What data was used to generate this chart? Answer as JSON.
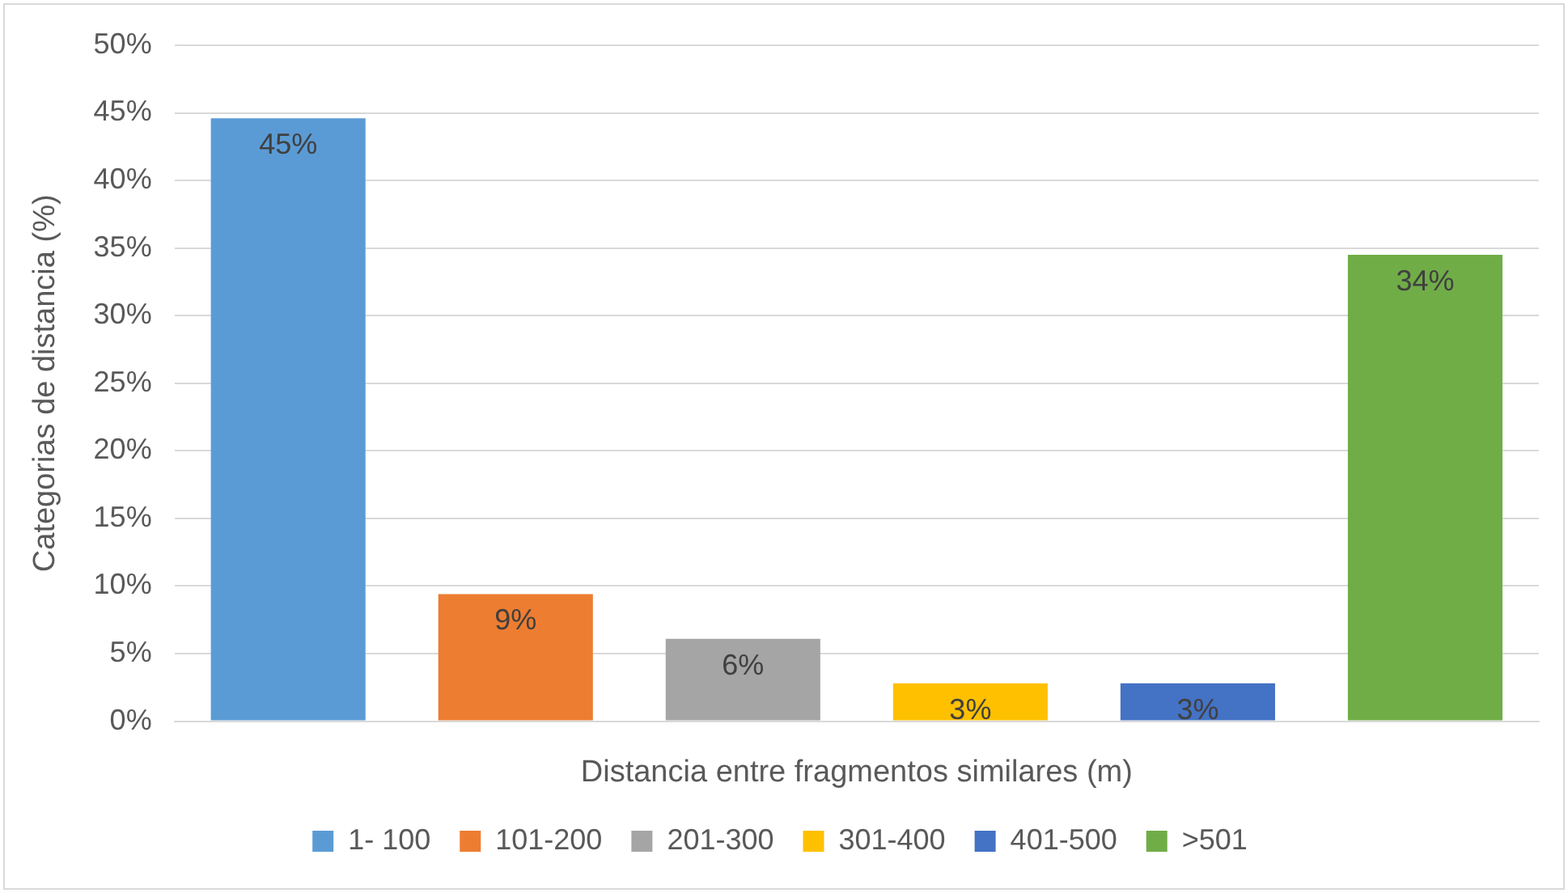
{
  "chart_data": {
    "type": "bar",
    "xlabel": "Distancia entre fragmentos similares (m)",
    "ylabel": "Categorias de distancia (%)",
    "categories": [
      null
    ],
    "series": [
      {
        "name": "1- 100",
        "color": "#5b9bd5",
        "values": [
          44.6
        ],
        "value_labels": [
          "45%"
        ]
      },
      {
        "name": "101-200",
        "color": "#ed7d31",
        "values": [
          9.4
        ],
        "value_labels": [
          "9%"
        ]
      },
      {
        "name": "201-300",
        "color": "#a5a5a5",
        "values": [
          6.1
        ],
        "value_labels": [
          "6%"
        ]
      },
      {
        "name": "301-400",
        "color": "#ffc000",
        "values": [
          2.8
        ],
        "value_labels": [
          "3%"
        ]
      },
      {
        "name": "401-500",
        "color": "#4472c4",
        "values": [
          2.8
        ],
        "value_labels": [
          "3%"
        ]
      },
      {
        "name": ">501",
        "color": "#70ad47",
        "values": [
          34.5
        ],
        "value_labels": [
          "34%"
        ]
      }
    ],
    "ylim": [
      0,
      50
    ],
    "yticks": [
      {
        "value": 0,
        "label": "0%"
      },
      {
        "value": 5,
        "label": "5%"
      },
      {
        "value": 10,
        "label": "10%"
      },
      {
        "value": 15,
        "label": "15%"
      },
      {
        "value": 20,
        "label": "20%"
      },
      {
        "value": 25,
        "label": "25%"
      },
      {
        "value": 30,
        "label": "30%"
      },
      {
        "value": 35,
        "label": "35%"
      },
      {
        "value": 40,
        "label": "40%"
      },
      {
        "value": 45,
        "label": "45%"
      },
      {
        "value": 50,
        "label": "50%"
      }
    ],
    "grid": "y",
    "legend": "bottom"
  }
}
